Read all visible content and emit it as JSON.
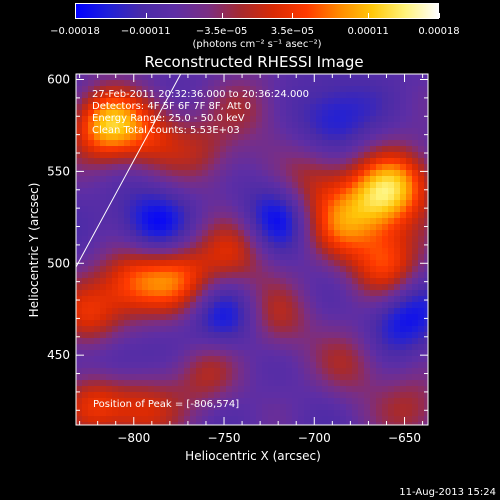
{
  "chart_data": {
    "type": "heatmap",
    "title": "Reconstructed RHESSI Image",
    "xlabel": "Heliocentric X (arcsec)",
    "ylabel": "Heliocentric Y (arcsec)",
    "xlim": [
      -832,
      -637
    ],
    "ylim": [
      412,
      603
    ],
    "x_ticks": [
      {
        "value": -800,
        "label": "−800"
      },
      {
        "value": -750,
        "label": "−750"
      },
      {
        "value": -700,
        "label": "−700"
      },
      {
        "value": -650,
        "label": "−650"
      }
    ],
    "y_ticks": [
      {
        "value": 450,
        "label": "450"
      },
      {
        "value": 500,
        "label": "500"
      },
      {
        "value": 550,
        "label": "550"
      },
      {
        "value": 600,
        "label": "600"
      }
    ],
    "colorbar": {
      "range": [
        -0.00018,
        0.00018
      ],
      "ticks": [
        {
          "value": -0.00018,
          "label": "−0.00018"
        },
        {
          "value": -0.00011,
          "label": "−0.00011"
        },
        {
          "value": -3.5e-05,
          "label": "−3.5e−05"
        },
        {
          "value": 3.5e-05,
          "label": "3.5e−05"
        },
        {
          "value": 0.00011,
          "label": "0.00011"
        },
        {
          "value": 0.00018,
          "label": "0.00018"
        }
      ],
      "unit": "(photons cm⁻² s⁻¹ asec⁻²)",
      "colors": [
        "#0000ff",
        "#2020d8",
        "#4a2ba8",
        "#5e2ea5",
        "#7a2e84",
        "#a62a2f",
        "#d92a04",
        "#ff3a00",
        "#ff8a00",
        "#ffc70a",
        "#fff37a",
        "#ffffff"
      ]
    },
    "sources": [
      {
        "x": -815,
        "y": 575,
        "amp": 0.00019
      },
      {
        "x": -790,
        "y": 570,
        "amp": 9e-05
      },
      {
        "x": -665,
        "y": 535,
        "amp": 0.00015
      },
      {
        "x": -650,
        "y": 545,
        "amp": 0.00012
      },
      {
        "x": -685,
        "y": 520,
        "amp": 0.00012
      },
      {
        "x": -660,
        "y": 500,
        "amp": 0.00013
      },
      {
        "x": -700,
        "y": 545,
        "amp": 9e-05
      },
      {
        "x": -800,
        "y": 490,
        "amp": 0.00014
      },
      {
        "x": -775,
        "y": 492,
        "amp": 0.00012
      },
      {
        "x": -745,
        "y": 505,
        "amp": 0.0001
      },
      {
        "x": -825,
        "y": 470,
        "amp": 0.00011
      },
      {
        "x": -820,
        "y": 425,
        "amp": 0.00012
      },
      {
        "x": -795,
        "y": 420,
        "amp": 0.0001
      },
      {
        "x": -760,
        "y": 440,
        "amp": 8e-05
      },
      {
        "x": -720,
        "y": 470,
        "amp": 8e-05
      },
      {
        "x": -680,
        "y": 445,
        "amp": 7e-05
      },
      {
        "x": -645,
        "y": 420,
        "amp": 8e-05
      },
      {
        "x": -760,
        "y": 560,
        "amp": 7e-05
      },
      {
        "x": -735,
        "y": 585,
        "amp": 6e-05
      },
      {
        "x": -790,
        "y": 520,
        "amp": -9e-05
      },
      {
        "x": -720,
        "y": 525,
        "amp": -8e-05
      },
      {
        "x": -650,
        "y": 470,
        "amp": -8e-05
      },
      {
        "x": -750,
        "y": 470,
        "amp": -8e-05
      },
      {
        "x": -690,
        "y": 580,
        "amp": -7e-05
      },
      {
        "x": -810,
        "y": 445,
        "amp": -7e-05
      }
    ],
    "limb": [
      {
        "x": -832,
        "y": 498
      },
      {
        "x": -774,
        "y": 603
      }
    ]
  },
  "info": {
    "line1": "27-Feb-2011 20:32:36.000 to 20:36:24.000",
    "line2": "Detectors: 4F 5F 6F 7F 8F, Att 0",
    "line3": "Energy Range: 25.0 - 50.0 keV",
    "line4": "Clean   Total counts: 5.53E+03",
    "peak": "Position of Peak = [-806,574]"
  },
  "footer": {
    "date": "11-Aug-2013 15:24"
  }
}
